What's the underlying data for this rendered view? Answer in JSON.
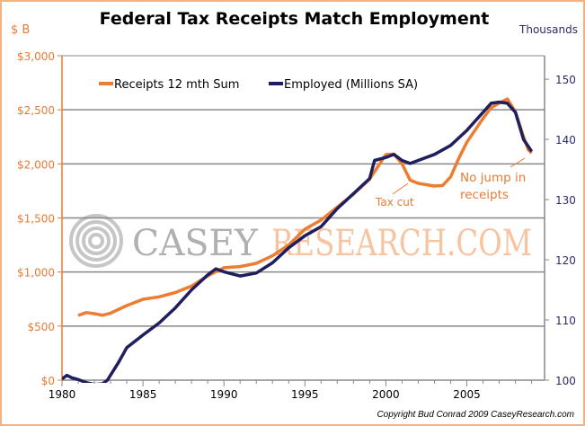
{
  "chart_data": {
    "type": "line",
    "title": "Federal Tax Receipts Match Employment",
    "left_axis_unit": "$ B",
    "right_axis_unit": "Thousands",
    "xlim": [
      1980,
      2009.8
    ],
    "ylim_left": [
      0,
      3000
    ],
    "ylim_right": [
      100,
      153.9
    ],
    "x_ticks": [
      "1980",
      "1985",
      "1990",
      "1995",
      "2000",
      "2005"
    ],
    "x_tick_values": [
      1980,
      1985,
      1990,
      1995,
      2000,
      2005
    ],
    "left_ticks": [
      "$0",
      "$500",
      "$1,000",
      "$1,500",
      "$2,000",
      "$2,500",
      "$3,000"
    ],
    "left_tick_values": [
      0,
      500,
      1000,
      1500,
      2000,
      2500,
      3000
    ],
    "right_ticks": [
      "100",
      "110",
      "120",
      "130",
      "140",
      "150"
    ],
    "right_tick_values": [
      100,
      110,
      120,
      130,
      140,
      150
    ],
    "grid": "horizontal",
    "legend_placement": "top-left",
    "series": [
      {
        "name": "Receipts 12 mth Sum",
        "axis": "left",
        "color": "#ed7d31",
        "x": [
          1981,
          1981.5,
          1982,
          1982.5,
          1983,
          1984,
          1985,
          1986,
          1987,
          1988,
          1989,
          1990,
          1991,
          1992,
          1993,
          1994,
          1995,
          1996,
          1997,
          1998,
          1999,
          2000,
          2000.5,
          2001,
          2001.5,
          2002,
          2003,
          2003.5,
          2004,
          2004.5,
          2005,
          2006,
          2006.5,
          2007,
          2007.5,
          2008,
          2008.5,
          2008.8,
          2009
        ],
        "y": [
          598,
          625,
          615,
          600,
          620,
          690,
          748,
          770,
          810,
          870,
          964,
          1040,
          1050,
          1080,
          1150,
          1250,
          1396,
          1480,
          1600,
          1720,
          1860,
          2086,
          2090,
          2000,
          1850,
          1820,
          1795,
          1800,
          1880,
          2050,
          2200,
          2420,
          2520,
          2560,
          2600,
          2480,
          2250,
          2130,
          2100
        ]
      },
      {
        "name": "Employed (Millions SA)",
        "axis": "right",
        "color": "#1f1f5e",
        "x": [
          1980,
          1980.3,
          1980.6,
          1981,
          1981.5,
          1982,
          1982.5,
          1982.8,
          1983.5,
          1984,
          1985,
          1986,
          1987,
          1988,
          1989,
          1989.5,
          1990,
          1991,
          1992,
          1993,
          1994,
          1995,
          1996,
          1997,
          1998,
          1999,
          1999.3,
          2000,
          2000.5,
          2001,
          2001.5,
          2002,
          2003,
          2004,
          2005,
          2006,
          2006.5,
          2007,
          2007.5,
          2008,
          2008.5,
          2009
        ],
        "y": [
          100.2,
          100.8,
          100.4,
          100.1,
          99.6,
          99.3,
          99.4,
          100,
          103,
          105.4,
          107.5,
          109.5,
          112,
          115,
          117.5,
          118.5,
          118,
          117.3,
          117.8,
          119.5,
          122,
          124,
          125.5,
          128.5,
          131,
          133.5,
          136.5,
          137,
          137.5,
          136.5,
          136,
          136.5,
          137.5,
          139,
          141.5,
          144.5,
          146,
          146.2,
          146,
          144.5,
          140,
          138
        ]
      }
    ],
    "annotations": [
      {
        "text": "Tax cut",
        "x": 2002,
        "y_left": 1830
      },
      {
        "text": "No jump in",
        "x": 2007.4,
        "y_left": 1950
      },
      {
        "text": "receipts",
        "x": 2007.4,
        "y_left": 1780
      }
    ]
  },
  "watermark": "CASEY RESEARCH.COM",
  "copyright": "Copyright Bud Conrad  2009 CaseyResearch.com"
}
